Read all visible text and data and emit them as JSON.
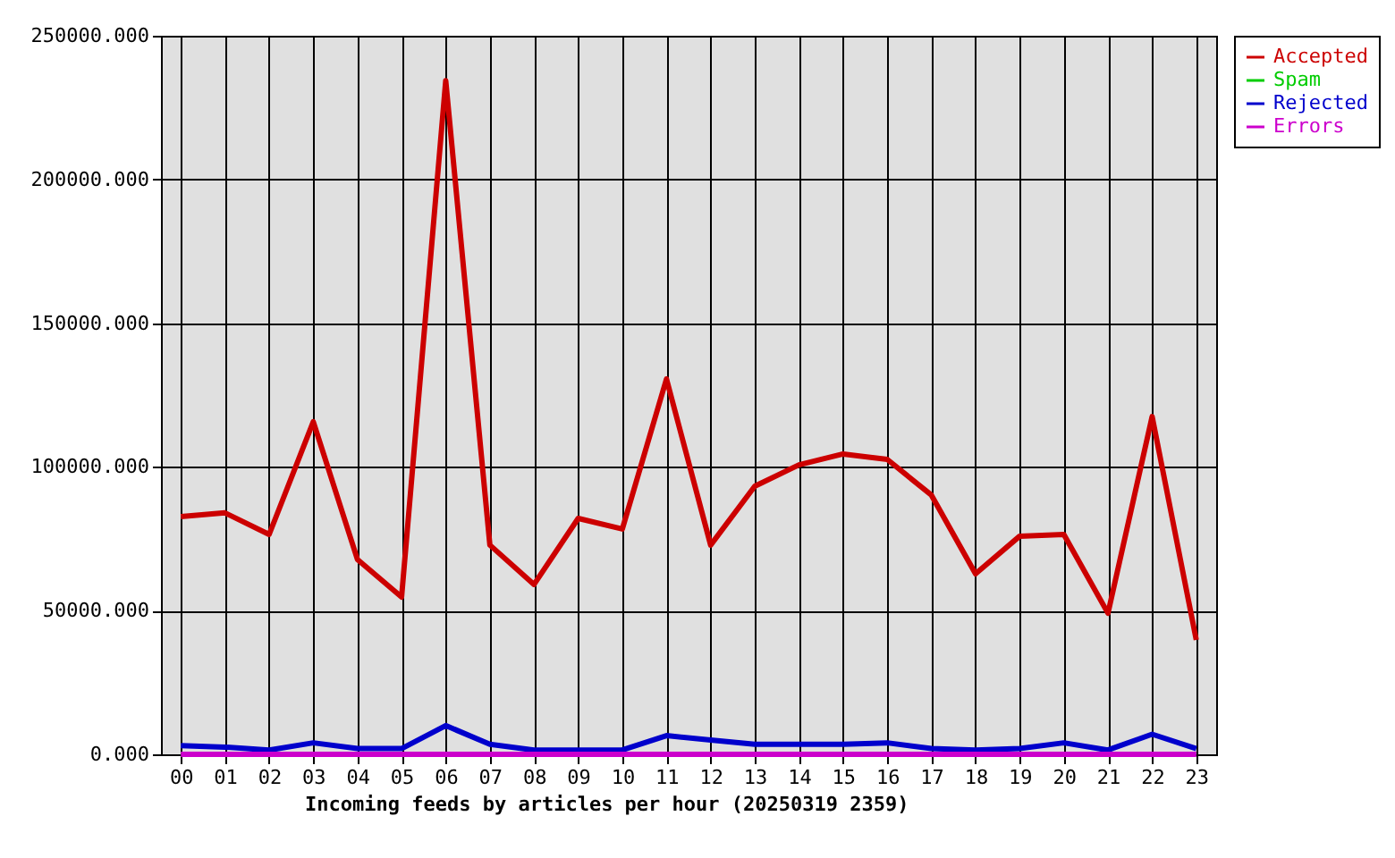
{
  "chart_data": {
    "type": "line",
    "xlabel": "Incoming feeds by articles per hour (20250319 2359)",
    "categories": [
      "00",
      "01",
      "02",
      "03",
      "04",
      "05",
      "06",
      "07",
      "08",
      "09",
      "10",
      "11",
      "12",
      "13",
      "14",
      "15",
      "16",
      "17",
      "18",
      "19",
      "20",
      "21",
      "22",
      "23"
    ],
    "series": [
      {
        "name": "Accepted",
        "color": "#cc0000",
        "values": [
          82700,
          84000,
          76500,
          115700,
          67800,
          54700,
          234400,
          72800,
          59100,
          82100,
          78400,
          130600,
          72800,
          93300,
          100700,
          104500,
          102600,
          90200,
          62800,
          75900,
          76500,
          49100,
          117500,
          39800
        ]
      },
      {
        "name": "Spam",
        "color": "#00cc00",
        "values": [
          null,
          null,
          null,
          null,
          null,
          null,
          null,
          null,
          null,
          null,
          null,
          null,
          null,
          null,
          null,
          null,
          null,
          null,
          null,
          null,
          null,
          null,
          null,
          null
        ]
      },
      {
        "name": "Rejected",
        "color": "#0000cc",
        "values": [
          3000,
          2500,
          1500,
          4000,
          2000,
          2000,
          10000,
          3500,
          1500,
          1500,
          1500,
          6500,
          5000,
          3500,
          3500,
          3500,
          4000,
          2000,
          1500,
          2000,
          4000,
          1500,
          7000,
          2000
        ]
      },
      {
        "name": "Errors",
        "color": "#cc00cc",
        "values": [
          0,
          0,
          0,
          0,
          0,
          0,
          0,
          0,
          0,
          0,
          0,
          0,
          0,
          0,
          0,
          0,
          0,
          0,
          0,
          0,
          0,
          0,
          0,
          0
        ]
      }
    ],
    "ylim": [
      0,
      250000
    ],
    "yticks": [
      {
        "value": 0,
        "label": "0.000"
      },
      {
        "value": 50000,
        "label": "50000.000"
      },
      {
        "value": 100000,
        "label": "100000.000"
      },
      {
        "value": 150000,
        "label": "150000.000"
      },
      {
        "value": 200000,
        "label": "200000.000"
      },
      {
        "value": 250000,
        "label": "250000.000"
      }
    ],
    "grid": true,
    "legend": "top right",
    "marker": "none",
    "line_style": "solid"
  }
}
